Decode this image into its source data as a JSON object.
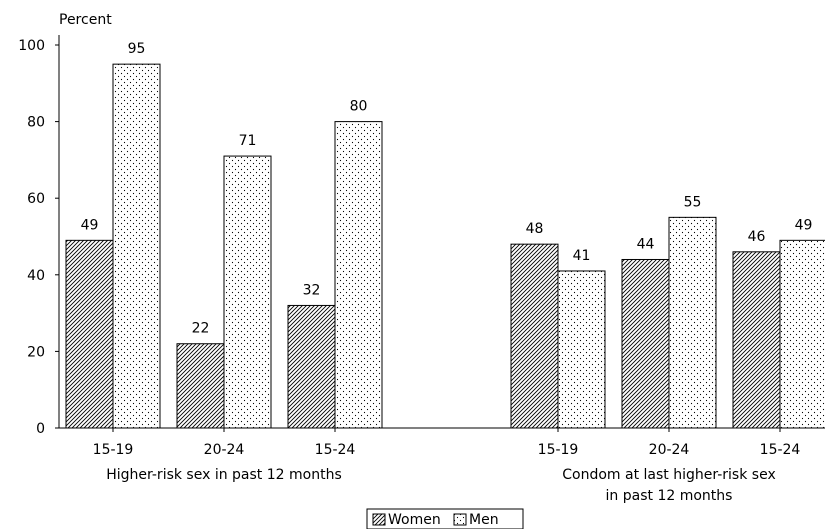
{
  "chart_data": {
    "type": "bar",
    "ylabel": "Percent",
    "ylim": [
      0,
      100
    ],
    "yticks": [
      0,
      20,
      40,
      60,
      80,
      100
    ],
    "grid": false,
    "legend_position": "bottom",
    "groups": [
      {
        "label_lines": [
          "Higher-risk sex in past 12 months"
        ],
        "categories": [
          "15-19",
          "20-24",
          "15-24"
        ],
        "series": [
          {
            "name": "Women",
            "values": [
              49,
              22,
              32
            ]
          },
          {
            "name": "Men",
            "values": [
              95,
              71,
              80
            ]
          }
        ]
      },
      {
        "label_lines": [
          "Condom at last higher-risk sex",
          "in past 12 months"
        ],
        "categories": [
          "15-19",
          "20-24",
          "15-24"
        ],
        "series": [
          {
            "name": "Women",
            "values": [
              48,
              44,
              46
            ]
          },
          {
            "name": "Men",
            "values": [
              41,
              55,
              49
            ]
          }
        ]
      }
    ],
    "legend": [
      {
        "name": "Women",
        "pattern": "hatch"
      },
      {
        "name": "Men",
        "pattern": "dots"
      }
    ]
  }
}
